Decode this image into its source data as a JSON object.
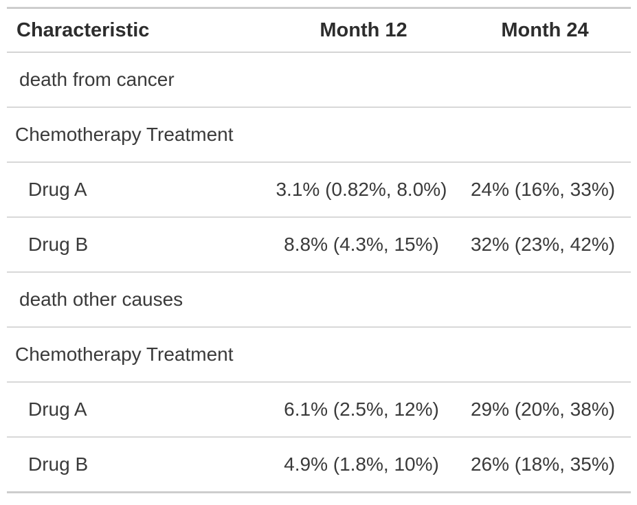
{
  "chart_data": {
    "type": "table",
    "columns": [
      "Characteristic",
      "Month 12",
      "Month 24"
    ],
    "rows": [
      [
        "death from cancer",
        "",
        ""
      ],
      [
        "Chemotherapy Treatment",
        "",
        ""
      ],
      [
        "Drug A",
        "3.1% (0.82%, 8.0%)",
        "24% (16%, 33%)"
      ],
      [
        "Drug B",
        "8.8% (4.3%, 15%)",
        "32% (23%, 42%)"
      ],
      [
        "death other causes",
        "",
        ""
      ],
      [
        "Chemotherapy Treatment",
        "",
        ""
      ],
      [
        "Drug A",
        "6.1% (2.5%, 12%)",
        "29% (20%, 38%)"
      ],
      [
        "Drug B",
        "4.9% (1.8%, 10%)",
        "26% (18%, 35%)"
      ]
    ],
    "row_kinds": [
      "group-label",
      "variable-label",
      "level",
      "level",
      "group-label",
      "variable-label",
      "level",
      "level"
    ],
    "layout_hints": {
      "stat_columns_alignment": "center",
      "label_column_alignment": "left",
      "grid": "horizontal-rules-only"
    }
  },
  "colors": {
    "background": "#ffffff",
    "header_text": "#2d2d2d",
    "body_text": "#3a3a3a",
    "outer_border": "#cdcdcd",
    "inner_border": "#d8d8d8",
    "header_border": "#d4d4d4"
  }
}
